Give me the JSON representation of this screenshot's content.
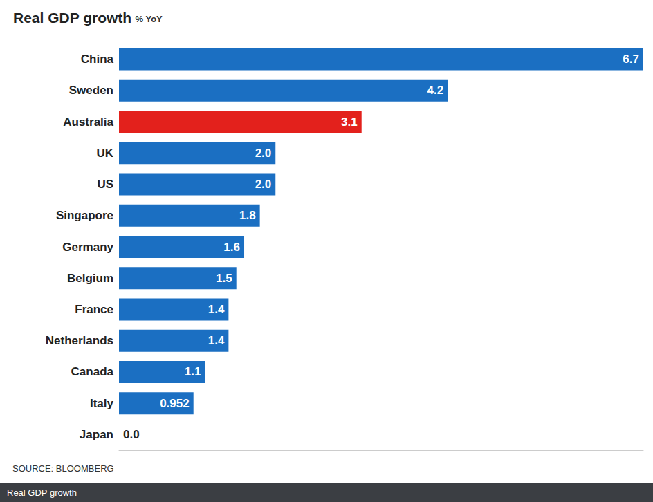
{
  "chart_data": {
    "type": "bar",
    "title": "Real GDP growth",
    "subtitle": "% YoY",
    "orientation": "horizontal",
    "categories": [
      "China",
      "Sweden",
      "Australia",
      "UK",
      "US",
      "Singapore",
      "Germany",
      "Belgium",
      "France",
      "Netherlands",
      "Canada",
      "Italy",
      "Japan"
    ],
    "values": [
      6.7,
      4.2,
      3.1,
      2.0,
      2.0,
      1.8,
      1.6,
      1.5,
      1.4,
      1.4,
      1.1,
      0.952,
      0.0
    ],
    "value_labels": [
      "6.7",
      "4.2",
      "3.1",
      "2.0",
      "2.0",
      "1.8",
      "1.6",
      "1.5",
      "1.4",
      "1.4",
      "1.1",
      "0.952",
      "0.0"
    ],
    "colors": [
      "#1b6fc2",
      "#1b6fc2",
      "#e3211c",
      "#1b6fc2",
      "#1b6fc2",
      "#1b6fc2",
      "#1b6fc2",
      "#1b6fc2",
      "#1b6fc2",
      "#1b6fc2",
      "#1b6fc2",
      "#1b6fc2",
      "#1b6fc2"
    ],
    "xlim": [
      0,
      6.7
    ],
    "data_labels": true,
    "tick_labels": "y",
    "grid": false,
    "source": "SOURCE: BLOOMBERG",
    "caption": "Real GDP growth"
  }
}
